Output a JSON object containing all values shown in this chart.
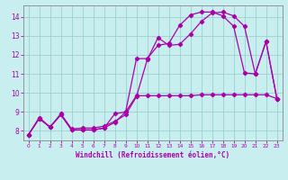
{
  "xlabel": "Windchill (Refroidissement éolien,°C)",
  "background_color": "#c8eef0",
  "grid_color": "#90ccc8",
  "line_color": "#aa00aa",
  "spine_color": "#888888",
  "xlim": [
    -0.5,
    23.5
  ],
  "ylim": [
    7.5,
    14.6
  ],
  "xticks": [
    0,
    1,
    2,
    3,
    4,
    5,
    6,
    7,
    8,
    9,
    10,
    11,
    12,
    13,
    14,
    15,
    16,
    17,
    18,
    19,
    20,
    21,
    22,
    23
  ],
  "yticks": [
    8,
    9,
    10,
    11,
    12,
    13,
    14
  ],
  "line1_x": [
    0,
    1,
    2,
    3,
    4,
    5,
    6,
    7,
    8,
    9,
    10,
    11,
    12,
    13,
    14,
    15,
    16,
    17,
    18,
    19,
    20,
    21,
    22,
    23
  ],
  "line1_y": [
    7.8,
    8.7,
    8.2,
    8.9,
    8.1,
    8.15,
    8.15,
    8.25,
    8.5,
    8.85,
    9.8,
    11.75,
    12.9,
    12.5,
    12.55,
    13.1,
    13.75,
    14.2,
    14.25,
    14.05,
    13.5,
    11.0,
    12.7,
    9.7
  ],
  "line2_x": [
    0,
    1,
    2,
    3,
    4,
    5,
    6,
    7,
    8,
    9,
    10,
    11,
    12,
    13,
    14,
    15,
    16,
    17,
    18,
    19,
    20,
    21,
    22,
    23
  ],
  "line2_y": [
    7.8,
    8.65,
    8.2,
    8.85,
    8.05,
    8.05,
    8.05,
    8.15,
    8.45,
    9.0,
    11.8,
    11.8,
    12.5,
    12.6,
    13.55,
    14.1,
    14.25,
    14.25,
    14.05,
    13.5,
    11.05,
    11.0,
    12.7,
    9.7
  ],
  "line3_x": [
    0,
    1,
    2,
    3,
    4,
    5,
    6,
    7,
    8,
    9,
    10,
    11,
    12,
    13,
    14,
    15,
    16,
    17,
    18,
    19,
    20,
    21,
    22,
    23
  ],
  "line3_y": [
    7.8,
    8.65,
    8.2,
    8.85,
    8.05,
    8.05,
    8.05,
    8.15,
    8.9,
    9.0,
    9.85,
    9.85,
    9.85,
    9.85,
    9.85,
    9.85,
    9.9,
    9.9,
    9.9,
    9.9,
    9.9,
    9.9,
    9.9,
    9.7
  ]
}
